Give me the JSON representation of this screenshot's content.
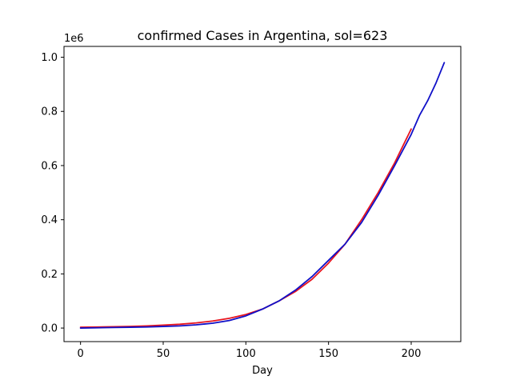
{
  "chart_data": {
    "type": "line",
    "title": "confirmed Cases in Argentina, sol=623",
    "xlabel": "Day",
    "ylabel": "",
    "y_offset_label": "1e6",
    "xlim": [
      -10,
      230
    ],
    "ylim": [
      -0.05,
      1.04
    ],
    "x_ticks": [
      0,
      50,
      100,
      150,
      200
    ],
    "x_tick_labels": [
      "0",
      "50",
      "100",
      "150",
      "200"
    ],
    "y_ticks": [
      0.0,
      0.2,
      0.4,
      0.6,
      0.8,
      1.0
    ],
    "y_tick_labels": [
      "0.0",
      "0.2",
      "0.4",
      "0.6",
      "0.8",
      "1.0"
    ],
    "grid": false,
    "series": [
      {
        "color": "#e8141e",
        "points": [
          [
            0,
            0.003
          ],
          [
            10,
            0.004
          ],
          [
            20,
            0.005
          ],
          [
            30,
            0.006
          ],
          [
            40,
            0.008
          ],
          [
            50,
            0.011
          ],
          [
            60,
            0.014
          ],
          [
            70,
            0.019
          ],
          [
            80,
            0.026
          ],
          [
            90,
            0.036
          ],
          [
            100,
            0.05
          ],
          [
            110,
            0.07
          ],
          [
            120,
            0.1
          ],
          [
            130,
            0.135
          ],
          [
            140,
            0.18
          ],
          [
            150,
            0.24
          ],
          [
            160,
            0.31
          ],
          [
            170,
            0.4
          ],
          [
            180,
            0.5
          ],
          [
            190,
            0.61
          ],
          [
            200,
            0.735
          ]
        ]
      },
      {
        "color": "#1010c8",
        "points": [
          [
            0,
            0.0
          ],
          [
            10,
            0.001
          ],
          [
            20,
            0.002
          ],
          [
            30,
            0.003
          ],
          [
            40,
            0.004
          ],
          [
            50,
            0.006
          ],
          [
            60,
            0.008
          ],
          [
            70,
            0.012
          ],
          [
            80,
            0.018
          ],
          [
            90,
            0.028
          ],
          [
            100,
            0.045
          ],
          [
            110,
            0.07
          ],
          [
            120,
            0.1
          ],
          [
            130,
            0.14
          ],
          [
            140,
            0.19
          ],
          [
            150,
            0.25
          ],
          [
            160,
            0.31
          ],
          [
            170,
            0.39
          ],
          [
            180,
            0.49
          ],
          [
            190,
            0.6
          ],
          [
            200,
            0.715
          ],
          [
            205,
            0.785
          ],
          [
            210,
            0.84
          ],
          [
            215,
            0.905
          ],
          [
            220,
            0.98
          ]
        ]
      }
    ]
  }
}
